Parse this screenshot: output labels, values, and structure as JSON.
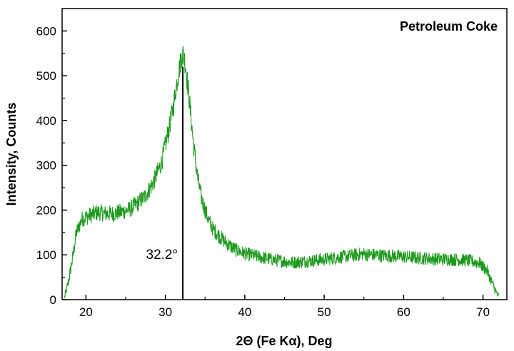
{
  "chart_data": {
    "type": "line",
    "title": "Petroleum Coke",
    "xlabel": "2Θ (Fe Kα), Deg",
    "ylabel": "Intensity, Counts",
    "xlim": [
      17,
      73
    ],
    "ylim": [
      0,
      650
    ],
    "x_ticks": [
      20,
      30,
      40,
      50,
      60,
      70
    ],
    "y_ticks": [
      0,
      100,
      200,
      300,
      400,
      500,
      600
    ],
    "grid": false,
    "line_color": "#1f9a1f",
    "series": [
      {
        "x": [
          17.3,
          17.8,
          18.3,
          18.8,
          19.5,
          20.5,
          21.5,
          22.5,
          23.5,
          24.5,
          25.5,
          26.5,
          27.5,
          28.5,
          29.5,
          30.5,
          31.0,
          31.5,
          32.0,
          32.2,
          32.5,
          33.0,
          33.5,
          34.0,
          34.5,
          35.0,
          35.5,
          36.0,
          37.0,
          38.0,
          39.0,
          40.0,
          42.0,
          44.0,
          46.0,
          48.0,
          50.0,
          52.0,
          54.0,
          55.0,
          56.0,
          58.0,
          60.0,
          62.0,
          64.0,
          66.0,
          68.0,
          69.5,
          70.5,
          71.2,
          71.7,
          72.0
        ],
        "y": [
          5,
          40,
          90,
          150,
          180,
          188,
          195,
          192,
          192,
          196,
          202,
          215,
          232,
          262,
          305,
          385,
          430,
          490,
          540,
          550,
          530,
          450,
          355,
          280,
          230,
          200,
          175,
          158,
          138,
          122,
          110,
          103,
          95,
          88,
          83,
          86,
          90,
          95,
          100,
          102,
          100,
          98,
          96,
          93,
          91,
          90,
          88,
          82,
          65,
          35,
          15,
          5
        ]
      }
    ],
    "annotations": [
      {
        "text": "32.2°",
        "x": 32.2,
        "y_top": 520
      }
    ]
  }
}
